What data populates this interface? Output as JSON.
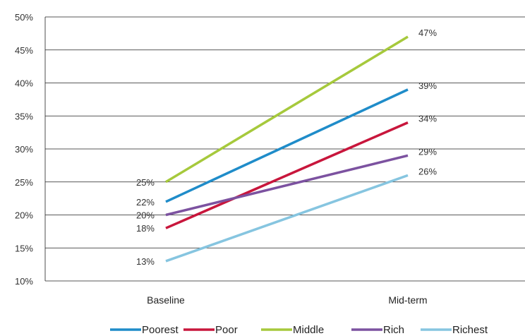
{
  "chart_data": {
    "type": "line",
    "title": "",
    "xlabel": "",
    "ylabel": "",
    "categories": [
      "Baseline",
      "Mid-term"
    ],
    "ylim": [
      10,
      50
    ],
    "yticks": [
      10,
      15,
      20,
      25,
      30,
      35,
      40,
      45,
      50
    ],
    "ytick_labels": [
      "10%",
      "15%",
      "20%",
      "25%",
      "30%",
      "35%",
      "40%",
      "45%",
      "50%"
    ],
    "grid": true,
    "legend_position": "bottom",
    "series": [
      {
        "name": "Poorest",
        "color": "#1f8cc9",
        "values": [
          22,
          39
        ],
        "labels": [
          "22%",
          "39%"
        ]
      },
      {
        "name": "Poor",
        "color": "#c8163c",
        "values": [
          18,
          34
        ],
        "labels": [
          "18%",
          "34%"
        ]
      },
      {
        "name": "Middle",
        "color": "#a6c93c",
        "values": [
          25,
          47
        ],
        "labels": [
          "25%",
          "47%"
        ]
      },
      {
        "name": "Rich",
        "color": "#7c52a0",
        "values": [
          20,
          29
        ],
        "labels": [
          "20%",
          "29%"
        ]
      },
      {
        "name": "Richest",
        "color": "#86c5e0",
        "values": [
          13,
          26
        ],
        "labels": [
          "13%",
          "26%"
        ]
      }
    ]
  }
}
